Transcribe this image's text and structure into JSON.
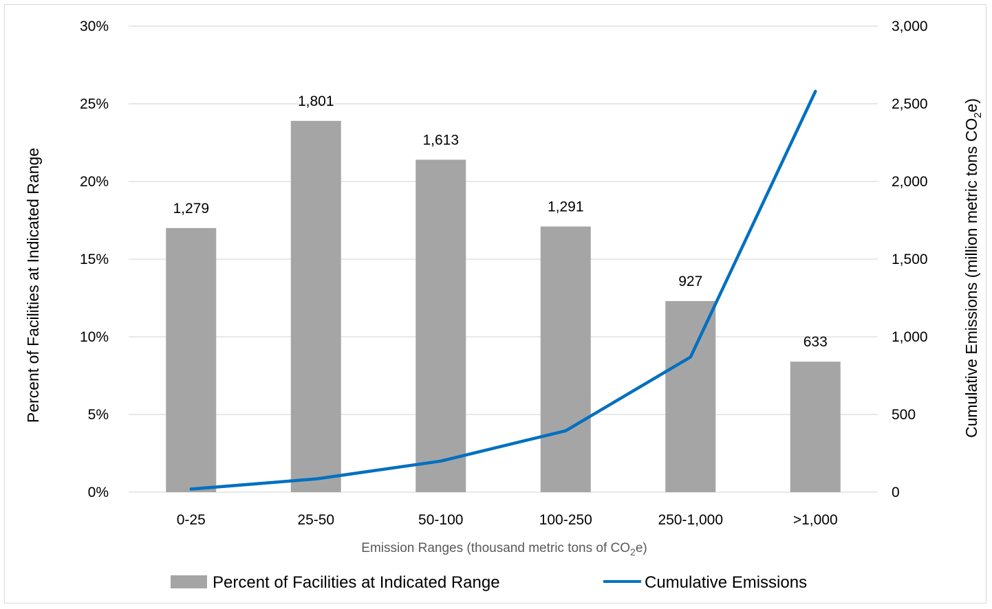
{
  "chart_data": {
    "type": "bar",
    "categories": [
      "0-25",
      "25-50",
      "50-100",
      "100-250",
      "250-1,000",
      ">1,000"
    ],
    "series": [
      {
        "name": "Percent of Facilities at Indicated Range",
        "kind": "bar",
        "axis": "left",
        "unit": "percent",
        "values": [
          17.0,
          23.9,
          21.4,
          17.1,
          12.3,
          8.4
        ],
        "data_labels": [
          "1,279",
          "1,801",
          "1,613",
          "1,291",
          "927",
          "633"
        ],
        "color": "#a5a5a5"
      },
      {
        "name": "Cumulative Emissions",
        "kind": "line",
        "axis": "right",
        "values": [
          20,
          85,
          200,
          395,
          870,
          2580
        ],
        "color": "#0070c0"
      }
    ],
    "xlabel_prefix": "Emission Ranges (thousand metric tons of CO",
    "xlabel_sub": "2",
    "xlabel_suffix": "e)",
    "ylabel_left": "Percent of Facilities at Indicated Range",
    "ylabel_right_prefix": "Cumulative Emissions (million metric tons CO",
    "ylabel_right_sub": "2",
    "ylabel_right_suffix": "e)",
    "ylim_left": [
      0,
      30
    ],
    "ylim_right": [
      0,
      3000
    ],
    "yticks_left": [
      "0%",
      "5%",
      "10%",
      "15%",
      "20%",
      "25%",
      "30%"
    ],
    "yticks_right": [
      "0",
      "500",
      "1,000",
      "1,500",
      "2,000",
      "2,500",
      "3,000"
    ],
    "grid": true,
    "legend_position": "bottom"
  }
}
